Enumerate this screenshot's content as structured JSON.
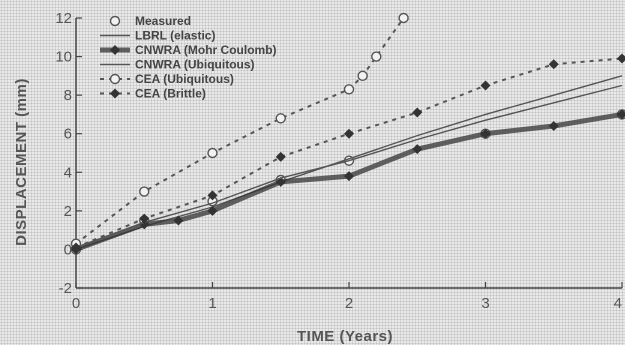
{
  "chart_data": {
    "type": "line",
    "xlabel": "TIME (Years)",
    "ylabel": "DISPLACEMENT (mm)",
    "xlim": [
      0,
      4
    ],
    "ylim": [
      -2,
      12
    ],
    "x_ticks": [
      "0",
      "1",
      "2",
      "3",
      "4"
    ],
    "y_ticks": [
      "-2",
      "0",
      "2",
      "4",
      "6",
      "8",
      "10",
      "12"
    ],
    "grid": false,
    "legend_position": "top-left",
    "colors": {
      "dark": "#333333",
      "mid": "#555555",
      "light": "#777777"
    },
    "series": [
      {
        "name": "Measured",
        "style": "markers-only",
        "marker": "circle-open",
        "points": [
          [
            0.0,
            0.0
          ],
          [
            0.5,
            1.5
          ],
          [
            1.0,
            2.5
          ],
          [
            1.5,
            3.6
          ],
          [
            2.0,
            4.6
          ],
          [
            3.0,
            6.0
          ],
          [
            4.0,
            7.0
          ]
        ]
      },
      {
        "name": "LBRL (elastic)",
        "style": "solid-thin",
        "marker": "none",
        "points": [
          [
            0.0,
            0.0
          ],
          [
            0.5,
            1.2
          ],
          [
            1.0,
            2.2
          ],
          [
            1.5,
            3.5
          ],
          [
            2.0,
            4.7
          ],
          [
            2.5,
            5.9
          ],
          [
            3.0,
            7.0
          ],
          [
            3.5,
            8.0
          ],
          [
            4.0,
            9.0
          ]
        ]
      },
      {
        "name": "CNWRA (Mohr Coulomb)",
        "style": "solid-thick",
        "marker": "diamond-filled",
        "points": [
          [
            0.0,
            0.0
          ],
          [
            0.5,
            1.3
          ],
          [
            0.75,
            1.5
          ],
          [
            1.0,
            2.0
          ],
          [
            1.5,
            3.5
          ],
          [
            2.0,
            3.8
          ],
          [
            2.5,
            5.2
          ],
          [
            3.0,
            6.0
          ],
          [
            3.5,
            6.4
          ],
          [
            4.0,
            7.0
          ]
        ]
      },
      {
        "name": "CNWRA (Ubiquitous)",
        "style": "solid-thin",
        "marker": "none",
        "points": [
          [
            0.0,
            0.1
          ],
          [
            0.5,
            1.4
          ],
          [
            1.0,
            2.4
          ],
          [
            1.5,
            3.7
          ],
          [
            2.0,
            4.6
          ],
          [
            2.5,
            5.7
          ],
          [
            3.0,
            6.7
          ],
          [
            3.5,
            7.6
          ],
          [
            4.0,
            8.5
          ]
        ]
      },
      {
        "name": "CEA (Ubiquitous)",
        "style": "dashed",
        "marker": "circle-open",
        "points": [
          [
            0.0,
            0.3
          ],
          [
            0.5,
            3.0
          ],
          [
            1.0,
            5.0
          ],
          [
            1.5,
            6.8
          ],
          [
            2.0,
            8.3
          ],
          [
            2.1,
            9.0
          ],
          [
            2.2,
            10.0
          ],
          [
            2.4,
            12.0
          ]
        ]
      },
      {
        "name": "CEA (Brittle)",
        "style": "dashed",
        "marker": "diamond-filled",
        "points": [
          [
            0.0,
            0.1
          ],
          [
            0.5,
            1.6
          ],
          [
            1.0,
            2.8
          ],
          [
            1.5,
            4.8
          ],
          [
            2.0,
            6.0
          ],
          [
            2.5,
            7.1
          ],
          [
            3.0,
            8.5
          ],
          [
            3.5,
            9.6
          ],
          [
            4.0,
            9.9
          ]
        ]
      }
    ]
  }
}
